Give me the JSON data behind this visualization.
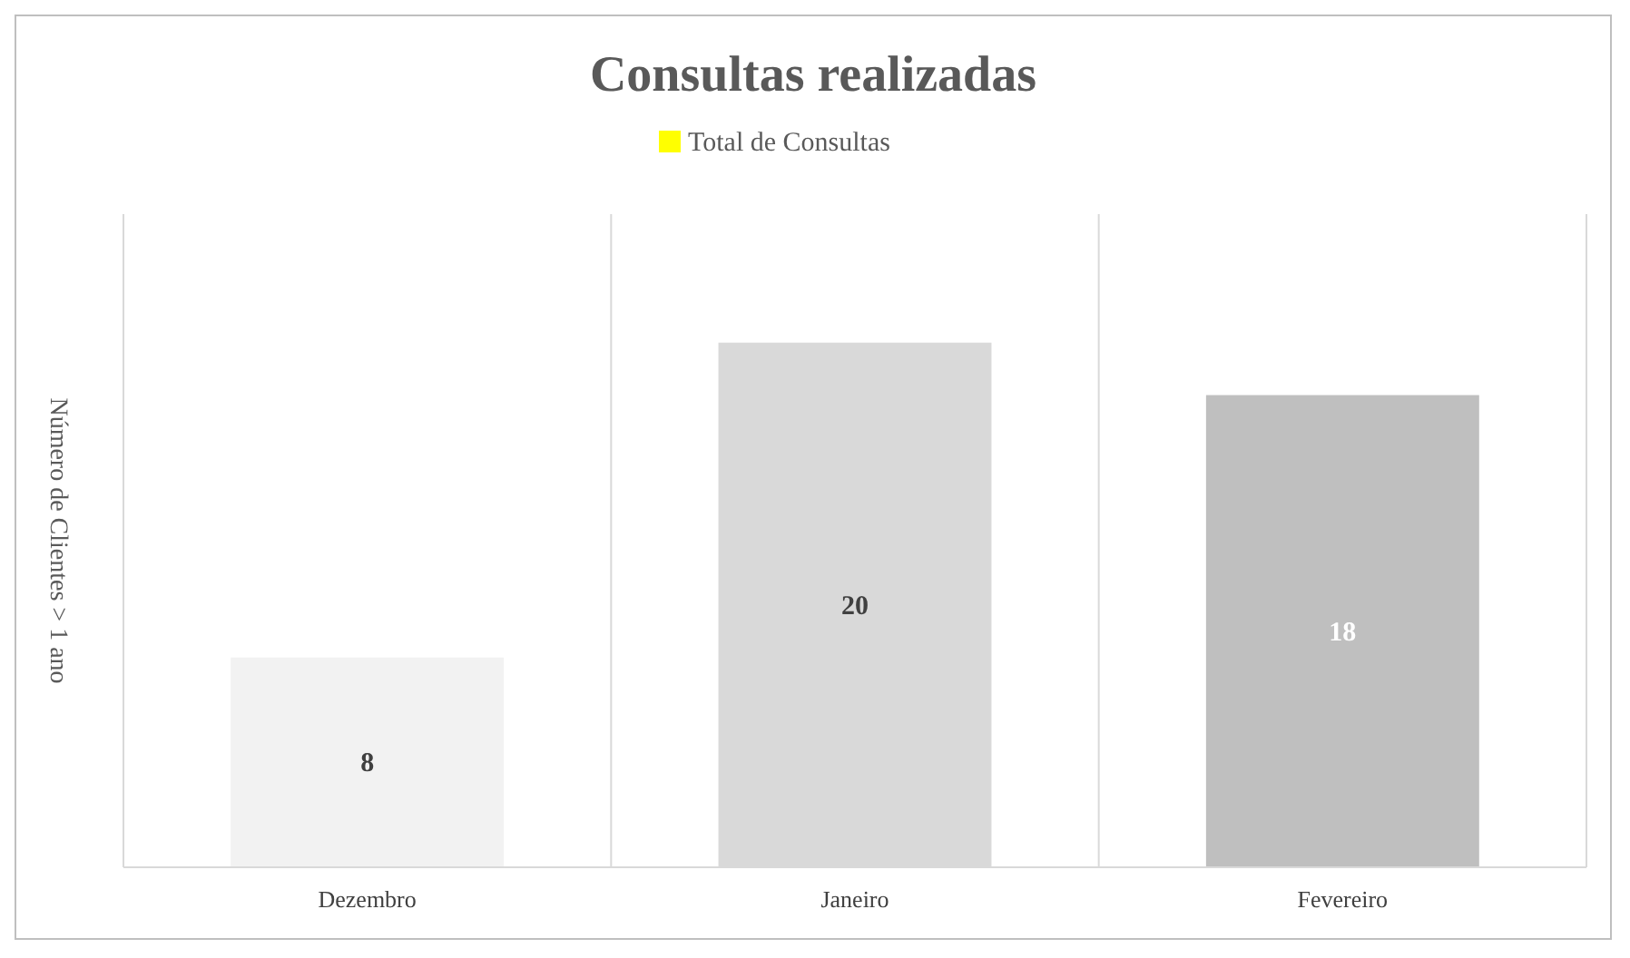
{
  "chart_data": {
    "type": "bar",
    "title": "Consultas realizadas",
    "ylabel": "Número de Clientes > 1 ano",
    "categories": [
      "Dezembro",
      "Janeiro",
      "Fevereiro"
    ],
    "series": [
      {
        "name": "Total de Consultas",
        "color": "#ffff00",
        "colors": [
          "#f2f2f2",
          "#d9d9d9",
          "#bfbfbf"
        ],
        "values": [
          8,
          20,
          18
        ]
      }
    ],
    "data_labels": true,
    "legend": "top",
    "grid": "x"
  }
}
